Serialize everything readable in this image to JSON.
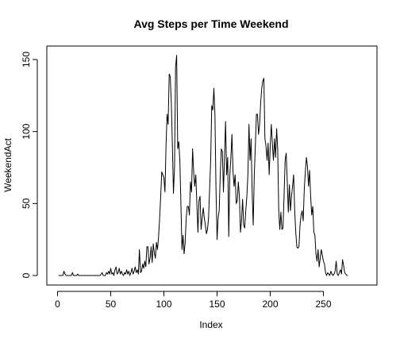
{
  "chart_data": {
    "type": "line",
    "title": "Avg Steps per Time Weekend",
    "xlabel": "Index",
    "ylabel": "WeekendAct",
    "xlim": [
      0,
      288
    ],
    "ylim": [
      0,
      155
    ],
    "xticks": [
      0,
      50,
      100,
      150,
      200,
      250
    ],
    "yticks": [
      0,
      50,
      100,
      150
    ],
    "grid": false,
    "line_color": "#000000",
    "series": [
      {
        "points": [
          [
            1,
            0
          ],
          [
            5,
            0
          ],
          [
            6,
            3
          ],
          [
            7,
            1
          ],
          [
            8,
            0
          ],
          [
            9,
            0
          ],
          [
            10,
            0
          ],
          [
            12,
            0
          ],
          [
            13,
            0
          ],
          [
            14,
            2
          ],
          [
            15,
            0
          ],
          [
            18,
            0
          ],
          [
            19,
            1
          ],
          [
            20,
            0
          ],
          [
            25,
            0
          ],
          [
            30,
            0
          ],
          [
            35,
            0
          ],
          [
            40,
            0
          ],
          [
            41,
            1
          ],
          [
            42,
            2
          ],
          [
            43,
            0
          ],
          [
            45,
            0
          ],
          [
            46,
            2
          ],
          [
            47,
            1
          ],
          [
            48,
            3
          ],
          [
            49,
            1
          ],
          [
            50,
            5
          ],
          [
            51,
            1
          ],
          [
            52,
            2
          ],
          [
            53,
            0
          ],
          [
            54,
            4
          ],
          [
            55,
            6
          ],
          [
            56,
            1
          ],
          [
            57,
            2
          ],
          [
            58,
            5
          ],
          [
            59,
            1
          ],
          [
            60,
            3
          ],
          [
            61,
            1
          ],
          [
            62,
            0
          ],
          [
            63,
            2
          ],
          [
            64,
            1
          ],
          [
            65,
            4
          ],
          [
            66,
            1
          ],
          [
            67,
            3
          ],
          [
            68,
            0
          ],
          [
            69,
            2
          ],
          [
            70,
            5
          ],
          [
            71,
            1
          ],
          [
            72,
            3
          ],
          [
            73,
            6
          ],
          [
            74,
            2
          ],
          [
            75,
            4
          ],
          [
            76,
            1
          ],
          [
            77,
            18
          ],
          [
            78,
            2
          ],
          [
            79,
            3
          ],
          [
            80,
            8
          ],
          [
            81,
            5
          ],
          [
            82,
            10
          ],
          [
            83,
            6
          ],
          [
            84,
            20
          ],
          [
            85,
            20
          ],
          [
            86,
            8
          ],
          [
            87,
            12
          ],
          [
            88,
            20
          ],
          [
            89,
            9
          ],
          [
            90,
            22
          ],
          [
            91,
            16
          ],
          [
            92,
            12
          ],
          [
            93,
            23
          ],
          [
            94,
            18
          ],
          [
            95,
            27
          ],
          [
            96,
            40
          ],
          [
            97,
            55
          ],
          [
            98,
            72
          ],
          [
            99,
            70
          ],
          [
            100,
            68
          ],
          [
            101,
            58
          ],
          [
            102,
            90
          ],
          [
            103,
            112
          ],
          [
            104,
            105
          ],
          [
            105,
            140
          ],
          [
            106,
            138
          ],
          [
            107,
            120
          ],
          [
            108,
            90
          ],
          [
            109,
            57
          ],
          [
            110,
            75
          ],
          [
            111,
            145
          ],
          [
            112,
            153
          ],
          [
            113,
            88
          ],
          [
            114,
            93
          ],
          [
            115,
            80
          ],
          [
            116,
            50
          ],
          [
            117,
            18
          ],
          [
            118,
            28
          ],
          [
            119,
            15
          ],
          [
            120,
            23
          ],
          [
            121,
            40
          ],
          [
            122,
            48
          ],
          [
            123,
            48
          ],
          [
            124,
            42
          ],
          [
            125,
            65
          ],
          [
            126,
            58
          ],
          [
            127,
            88
          ],
          [
            128,
            72
          ],
          [
            129,
            62
          ],
          [
            130,
            70
          ],
          [
            131,
            50
          ],
          [
            132,
            30
          ],
          [
            133,
            52
          ],
          [
            134,
            55
          ],
          [
            135,
            32
          ],
          [
            136,
            40
          ],
          [
            137,
            47
          ],
          [
            138,
            40
          ],
          [
            139,
            35
          ],
          [
            140,
            29
          ],
          [
            141,
            32
          ],
          [
            142,
            40
          ],
          [
            143,
            60
          ],
          [
            144,
            80
          ],
          [
            145,
            118
          ],
          [
            146,
            115
          ],
          [
            147,
            130
          ],
          [
            148,
            112
          ],
          [
            149,
            60
          ],
          [
            150,
            25
          ],
          [
            151,
            40
          ],
          [
            152,
            45
          ],
          [
            153,
            70
          ],
          [
            154,
            88
          ],
          [
            155,
            86
          ],
          [
            156,
            58
          ],
          [
            157,
            82
          ],
          [
            158,
            107
          ],
          [
            159,
            70
          ],
          [
            160,
            82
          ],
          [
            161,
            27
          ],
          [
            162,
            70
          ],
          [
            163,
            82
          ],
          [
            164,
            98
          ],
          [
            165,
            72
          ],
          [
            166,
            62
          ],
          [
            167,
            70
          ],
          [
            168,
            50
          ],
          [
            169,
            52
          ],
          [
            170,
            65
          ],
          [
            171,
            55
          ],
          [
            172,
            30
          ],
          [
            173,
            38
          ],
          [
            174,
            53
          ],
          [
            175,
            35
          ],
          [
            176,
            33
          ],
          [
            177,
            45
          ],
          [
            178,
            55
          ],
          [
            179,
            70
          ],
          [
            180,
            105
          ],
          [
            181,
            80
          ],
          [
            182,
            95
          ],
          [
            183,
            58
          ],
          [
            184,
            35
          ],
          [
            185,
            70
          ],
          [
            186,
            90
          ],
          [
            187,
            112
          ],
          [
            188,
            112
          ],
          [
            189,
            98
          ],
          [
            190,
            105
          ],
          [
            191,
            120
          ],
          [
            192,
            130
          ],
          [
            193,
            135
          ],
          [
            194,
            137
          ],
          [
            195,
            95
          ],
          [
            196,
            90
          ],
          [
            197,
            80
          ],
          [
            198,
            92
          ],
          [
            199,
            70
          ],
          [
            200,
            90
          ],
          [
            201,
            105
          ],
          [
            202,
            92
          ],
          [
            203,
            80
          ],
          [
            204,
            95
          ],
          [
            205,
            82
          ],
          [
            206,
            102
          ],
          [
            207,
            88
          ],
          [
            208,
            45
          ],
          [
            209,
            32
          ],
          [
            210,
            44
          ],
          [
            211,
            32
          ],
          [
            212,
            33
          ],
          [
            213,
            55
          ],
          [
            214,
            80
          ],
          [
            215,
            85
          ],
          [
            216,
            65
          ],
          [
            217,
            44
          ],
          [
            218,
            63
          ],
          [
            219,
            45
          ],
          [
            220,
            55
          ],
          [
            221,
            62
          ],
          [
            222,
            70
          ],
          [
            223,
            45
          ],
          [
            224,
            30
          ],
          [
            225,
            20
          ],
          [
            226,
            19
          ],
          [
            227,
            20
          ],
          [
            228,
            35
          ],
          [
            229,
            42
          ],
          [
            230,
            45
          ],
          [
            231,
            38
          ],
          [
            232,
            60
          ],
          [
            233,
            72
          ],
          [
            234,
            82
          ],
          [
            235,
            76
          ],
          [
            236,
            62
          ],
          [
            237,
            73
          ],
          [
            238,
            55
          ],
          [
            239,
            42
          ],
          [
            240,
            48
          ],
          [
            241,
            30
          ],
          [
            242,
            28
          ],
          [
            243,
            15
          ],
          [
            244,
            10
          ],
          [
            245,
            18
          ],
          [
            246,
            6
          ],
          [
            247,
            12
          ],
          [
            248,
            18
          ],
          [
            249,
            14
          ],
          [
            250,
            10
          ],
          [
            251,
            8
          ],
          [
            252,
            2
          ],
          [
            253,
            0
          ],
          [
            254,
            2
          ],
          [
            255,
            1
          ],
          [
            256,
            0
          ],
          [
            257,
            3
          ],
          [
            258,
            1
          ],
          [
            259,
            0
          ],
          [
            260,
            1
          ],
          [
            261,
            3
          ],
          [
            262,
            10
          ],
          [
            263,
            1
          ],
          [
            264,
            0
          ],
          [
            265,
            2
          ],
          [
            266,
            4
          ],
          [
            267,
            1
          ],
          [
            268,
            11
          ],
          [
            269,
            7
          ],
          [
            270,
            2
          ],
          [
            271,
            1
          ],
          [
            272,
            0
          ],
          [
            273,
            0
          ]
        ]
      }
    ]
  }
}
